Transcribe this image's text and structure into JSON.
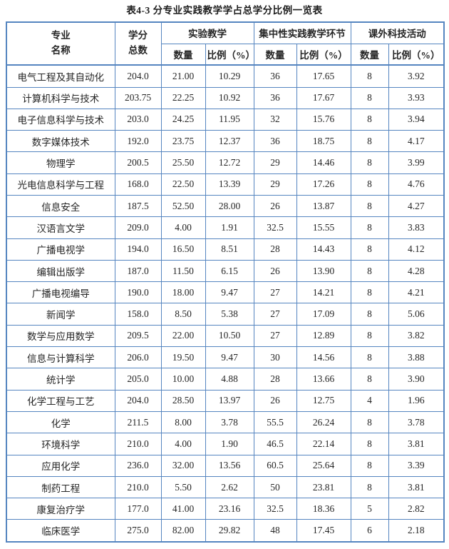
{
  "title": "表4-3 分专业实践教学学占总学分比例一览表",
  "colors": {
    "border": "#5585c0",
    "text": "#262626",
    "background": "#ffffff"
  },
  "table": {
    "header": {
      "major": [
        "专业",
        "名称"
      ],
      "total_credits": [
        "学分",
        "总数"
      ],
      "groups": [
        "实验教学",
        "集中性实践教学环节",
        "课外科技活动"
      ],
      "quantity": "数量",
      "ratio": "比例（%）"
    },
    "column_keys": [
      "major",
      "total-credits",
      "exp-quantity",
      "exp-ratio",
      "practice-quantity",
      "practice-ratio",
      "extracurricular-quantity",
      "extracurricular-ratio"
    ],
    "rows": [
      [
        "电气工程及其自动化",
        "204.0",
        "21.00",
        "10.29",
        "36",
        "17.65",
        "8",
        "3.92"
      ],
      [
        "计算机科学与技术",
        "203.75",
        "22.25",
        "10.92",
        "36",
        "17.67",
        "8",
        "3.93"
      ],
      [
        "电子信息科学与技术",
        "203.0",
        "24.25",
        "11.95",
        "32",
        "15.76",
        "8",
        "3.94"
      ],
      [
        "数字媒体技术",
        "192.0",
        "23.75",
        "12.37",
        "36",
        "18.75",
        "8",
        "4.17"
      ],
      [
        "物理学",
        "200.5",
        "25.50",
        "12.72",
        "29",
        "14.46",
        "8",
        "3.99"
      ],
      [
        "光电信息科学与工程",
        "168.0",
        "22.50",
        "13.39",
        "29",
        "17.26",
        "8",
        "4.76"
      ],
      [
        "信息安全",
        "187.5",
        "52.50",
        "28.00",
        "26",
        "13.87",
        "8",
        "4.27"
      ],
      [
        "汉语言文学",
        "209.0",
        "4.00",
        "1.91",
        "32.5",
        "15.55",
        "8",
        "3.83"
      ],
      [
        "广播电视学",
        "194.0",
        "16.50",
        "8.51",
        "28",
        "14.43",
        "8",
        "4.12"
      ],
      [
        "编辑出版学",
        "187.0",
        "11.50",
        "6.15",
        "26",
        "13.90",
        "8",
        "4.28"
      ],
      [
        "广播电视编导",
        "190.0",
        "18.00",
        "9.47",
        "27",
        "14.21",
        "8",
        "4.21"
      ],
      [
        "新闻学",
        "158.0",
        "8.50",
        "5.38",
        "27",
        "17.09",
        "8",
        "5.06"
      ],
      [
        "数学与应用数学",
        "209.5",
        "22.00",
        "10.50",
        "27",
        "12.89",
        "8",
        "3.82"
      ],
      [
        "信息与计算科学",
        "206.0",
        "19.50",
        "9.47",
        "30",
        "14.56",
        "8",
        "3.88"
      ],
      [
        "统计学",
        "205.0",
        "10.00",
        "4.88",
        "28",
        "13.66",
        "8",
        "3.90"
      ],
      [
        "化学工程与工艺",
        "204.0",
        "28.50",
        "13.97",
        "26",
        "12.75",
        "4",
        "1.96"
      ],
      [
        "化学",
        "211.5",
        "8.00",
        "3.78",
        "55.5",
        "26.24",
        "8",
        "3.78"
      ],
      [
        "环境科学",
        "210.0",
        "4.00",
        "1.90",
        "46.5",
        "22.14",
        "8",
        "3.81"
      ],
      [
        "应用化学",
        "236.0",
        "32.00",
        "13.56",
        "60.5",
        "25.64",
        "8",
        "3.39"
      ],
      [
        "制药工程",
        "210.0",
        "5.50",
        "2.62",
        "50",
        "23.81",
        "8",
        "3.81"
      ],
      [
        "康复治疗学",
        "177.0",
        "41.00",
        "23.16",
        "32.5",
        "18.36",
        "5",
        "2.82"
      ],
      [
        "临床医学",
        "275.0",
        "82.00",
        "29.82",
        "48",
        "17.45",
        "6",
        "2.18"
      ]
    ]
  }
}
